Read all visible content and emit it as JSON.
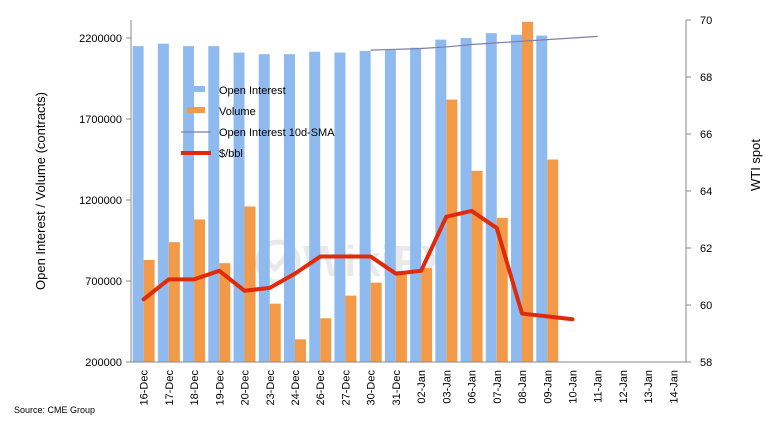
{
  "chart_data": {
    "type": "bar",
    "categories": [
      "16-Dec",
      "17-Dec",
      "18-Dec",
      "19-Dec",
      "20-Dec",
      "23-Dec",
      "24-Dec",
      "26-Dec",
      "27-Dec",
      "30-Dec",
      "31-Dec",
      "02-Jan",
      "03-Jan",
      "06-Jan",
      "07-Jan",
      "08-Jan",
      "09-Jan",
      "10-Jan",
      "11-Jan",
      "12-Jan",
      "13-Jan",
      "14-Jan"
    ],
    "ylabel": "Open Interest / Volume (contracts)",
    "y2label": "WTI spot",
    "ylim": [
      200000,
      2200000
    ],
    "yticks": [
      "200000",
      "700000",
      "1200000",
      "1700000",
      "2200000"
    ],
    "y2lim": [
      58,
      70
    ],
    "y2ticks": [
      "58",
      "60",
      "62",
      "64",
      "66",
      "68",
      "70"
    ],
    "grid": false,
    "legend_placement": "upper-left",
    "series": [
      {
        "name": "Open Interest",
        "type": "bar",
        "color": "#8fbaf0",
        "values": [
          2150000,
          2165000,
          2150000,
          2150000,
          2110000,
          2100000,
          2100000,
          2115000,
          2110000,
          2120000,
          2125000,
          2140000,
          2190000,
          2200000,
          2230000,
          2220000,
          2215000,
          null,
          null,
          null,
          null,
          null
        ]
      },
      {
        "name": "Volume",
        "type": "bar",
        "color": "#f39a48",
        "values": [
          830000,
          940000,
          1080000,
          810000,
          1160000,
          560000,
          340000,
          470000,
          610000,
          690000,
          760000,
          780000,
          1820000,
          1380000,
          1090000,
          2300000,
          1450000,
          null,
          null,
          null,
          null,
          null
        ]
      },
      {
        "name": "Open Interest 10d-SMA",
        "type": "line",
        "color": "#7f7faa",
        "values": [
          null,
          null,
          null,
          null,
          null,
          null,
          null,
          null,
          null,
          2125000,
          2130000,
          2135000,
          2145000,
          2160000,
          2170000,
          2180000,
          2190000,
          2200000,
          2210000,
          null,
          null,
          null
        ]
      },
      {
        "name": "$/bbl",
        "type": "line",
        "axis": "y2",
        "color": "#e02a0a",
        "values": [
          60.2,
          60.9,
          60.9,
          61.2,
          60.5,
          60.6,
          61.1,
          61.7,
          61.7,
          61.7,
          61.1,
          61.2,
          63.1,
          63.3,
          62.7,
          59.7,
          59.6,
          59.5,
          null,
          null,
          null,
          null
        ]
      }
    ],
    "source": "Source: CME Group",
    "watermark": "WikiFX"
  }
}
